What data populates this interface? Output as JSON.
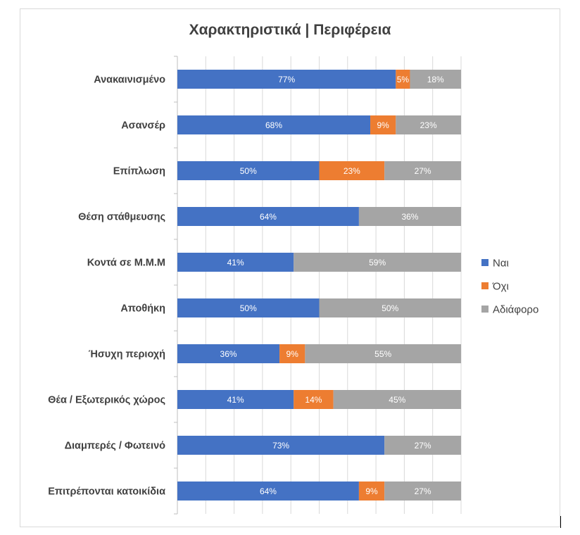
{
  "chart_data": {
    "type": "bar",
    "orientation": "horizontal",
    "stacked": true,
    "title": "Χαρακτηριστικά | Περιφέρεια",
    "xlabel": "",
    "ylabel": "",
    "xlim": [
      0,
      100
    ],
    "grid": true,
    "legend_position": "right",
    "categories": [
      "Ανακαινισμένο",
      "Ασανσέρ",
      "Επίπλωση",
      "Θέση στάθμευσης",
      "Κοντά σε Μ.Μ.Μ",
      "Αποθήκη",
      "Ήσυχη περιοχή",
      "Θέα / Εξωτερικός χώρος",
      "Διαμπερές / Φωτεινό",
      "Επιτρέπονται κατοικίδια"
    ],
    "series": [
      {
        "name": "Ναι",
        "color": "#4472C4",
        "values": [
          77,
          68,
          50,
          64,
          41,
          50,
          36,
          41,
          73,
          64
        ]
      },
      {
        "name": "Όχι",
        "color": "#ED7D31",
        "values": [
          5,
          9,
          23,
          0,
          0,
          0,
          9,
          14,
          0,
          9
        ]
      },
      {
        "name": "Αδιάφορο",
        "color": "#A5A5A5",
        "values": [
          18,
          23,
          27,
          36,
          59,
          50,
          55,
          45,
          27,
          27
        ]
      }
    ]
  }
}
